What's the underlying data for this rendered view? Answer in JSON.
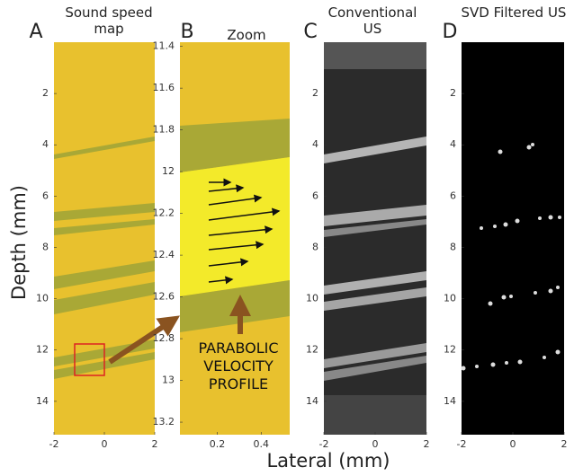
{
  "chart_data": [
    {
      "type": "image",
      "label": "A",
      "title": "Sound speed map",
      "ylabel": "Depth (mm)",
      "xlim": [
        -2,
        2
      ],
      "xticks": [
        -2,
        0,
        2
      ],
      "ylim": [
        15.3,
        0
      ],
      "yticks": [
        2,
        4,
        6,
        8,
        10,
        12,
        14
      ]
    },
    {
      "type": "image",
      "label": "B",
      "title": "Zoom",
      "annotation": "PARABOLIC VELOCITY PROFILE",
      "xlim": [
        0.03,
        0.53
      ],
      "xticks": [
        0.2,
        0.4
      ],
      "ylim": [
        13.26,
        11.38
      ],
      "yticks": [
        11.4,
        11.6,
        11.8,
        12,
        12.2,
        12.4,
        12.6,
        12.8,
        13,
        13.2
      ]
    },
    {
      "type": "image",
      "label": "C",
      "title": "Conventional US",
      "xlim": [
        -2,
        2
      ],
      "xticks": [
        -2,
        0,
        2
      ],
      "ylim": [
        15.3,
        0
      ],
      "yticks": [
        2,
        4,
        6,
        8,
        10,
        12,
        14
      ]
    },
    {
      "type": "image",
      "label": "D",
      "title": "SVD Filtered US",
      "xlim": [
        -2,
        2
      ],
      "xticks": [
        -2,
        0,
        2
      ],
      "ylim": [
        15.3,
        0
      ],
      "yticks": [
        2,
        4,
        6,
        8,
        10,
        12,
        14
      ]
    }
  ],
  "xlabel": "Lateral (mm)"
}
